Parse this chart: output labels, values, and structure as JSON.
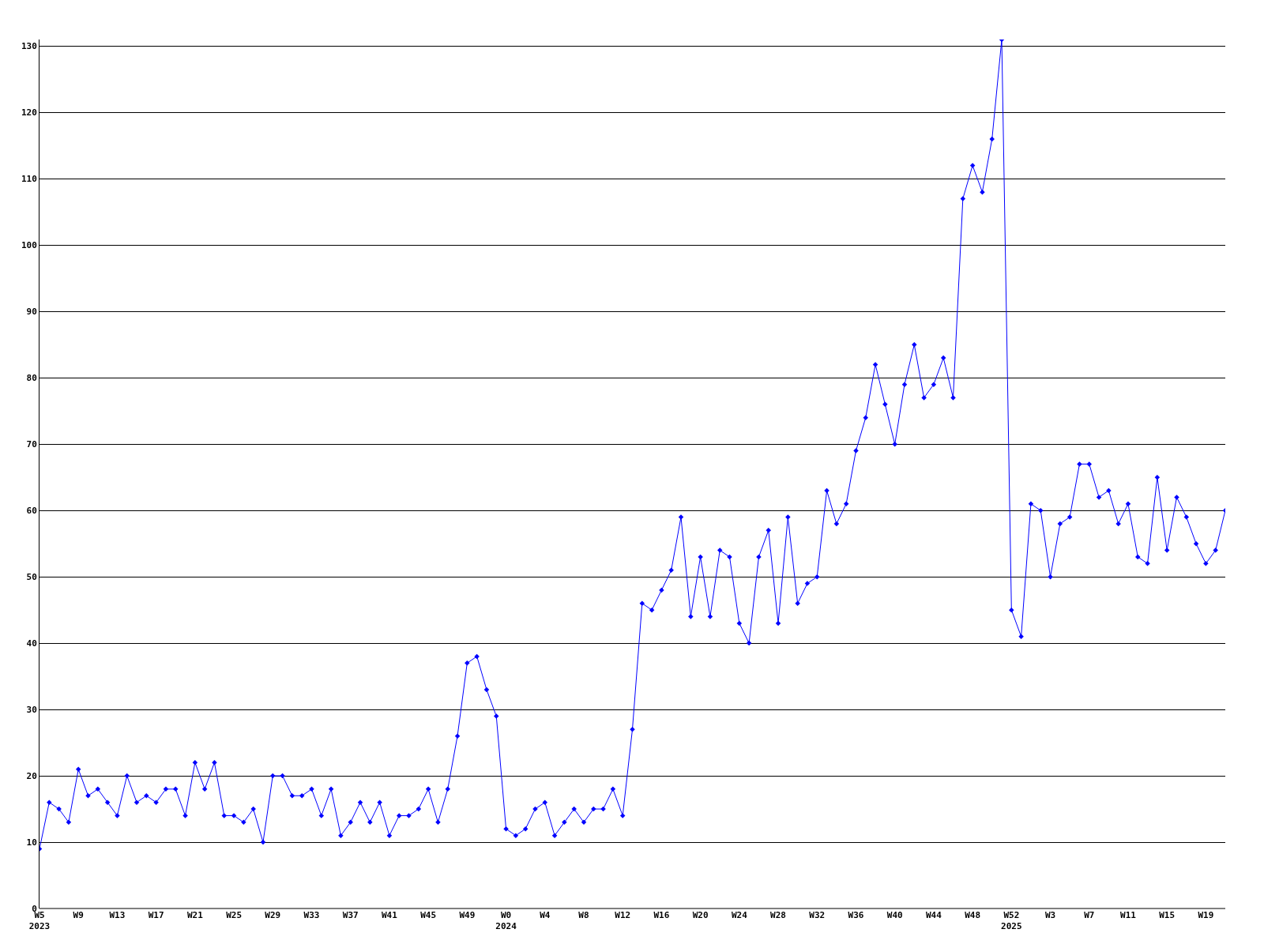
{
  "chart_data": {
    "type": "line",
    "categories": [
      "W5\n2023",
      null,
      null,
      null,
      "W9",
      null,
      null,
      null,
      "W13",
      null,
      null,
      null,
      "W17",
      null,
      null,
      null,
      "W21",
      null,
      null,
      null,
      "W25",
      null,
      null,
      null,
      "W29",
      null,
      null,
      null,
      "W33",
      null,
      null,
      null,
      "W37",
      null,
      null,
      null,
      "W41",
      null,
      null,
      null,
      "W45",
      null,
      null,
      null,
      "W49",
      null,
      null,
      null,
      "W0\n2024",
      null,
      null,
      null,
      "W4",
      null,
      null,
      null,
      "W8",
      null,
      null,
      null,
      "W12",
      null,
      null,
      null,
      "W16",
      null,
      null,
      null,
      "W20",
      null,
      null,
      null,
      "W24",
      null,
      null,
      null,
      "W28",
      null,
      null,
      null,
      "W32",
      null,
      null,
      null,
      "W36",
      null,
      null,
      null,
      "W40",
      null,
      null,
      null,
      "W44",
      null,
      null,
      null,
      "W48",
      null,
      null,
      null,
      "W52\n2025",
      null,
      null,
      null,
      "W3",
      null,
      null,
      null,
      "W7",
      null,
      null,
      null,
      "W11",
      null,
      null,
      null,
      "W15",
      null,
      null,
      null,
      "W19",
      null,
      null
    ],
    "series": [
      {
        "color": "#0000ff",
        "values": [
          9,
          16,
          15,
          13,
          21,
          17,
          18,
          16,
          14,
          20,
          16,
          17,
          16,
          18,
          18,
          14,
          22,
          18,
          22,
          14,
          14,
          13,
          15,
          10,
          20,
          20,
          17,
          17,
          18,
          14,
          18,
          11,
          13,
          16,
          13,
          16,
          11,
          14,
          14,
          15,
          18,
          13,
          18,
          26,
          37,
          38,
          33,
          29,
          12,
          11,
          12,
          15,
          16,
          11,
          13,
          15,
          13,
          15,
          15,
          18,
          14,
          27,
          46,
          45,
          48,
          51,
          59,
          44,
          53,
          44,
          54,
          53,
          43,
          40,
          53,
          57,
          43,
          59,
          46,
          49,
          50,
          63,
          58,
          61,
          69,
          74,
          82,
          76,
          70,
          79,
          85,
          77,
          79,
          83,
          77,
          107,
          112,
          108,
          116,
          131,
          45,
          41,
          61,
          60,
          50,
          58,
          59,
          67,
          67,
          62,
          63,
          58,
          61,
          53,
          52,
          65,
          54,
          62,
          59,
          55,
          52,
          54,
          60
        ]
      }
    ],
    "ylim": [
      0,
      131
    ],
    "yticks": [
      0,
      10,
      20,
      30,
      40,
      50,
      60,
      70,
      80,
      90,
      100,
      110,
      120,
      130
    ],
    "grid": "y",
    "marker": "diamond",
    "line_style": "solid"
  }
}
